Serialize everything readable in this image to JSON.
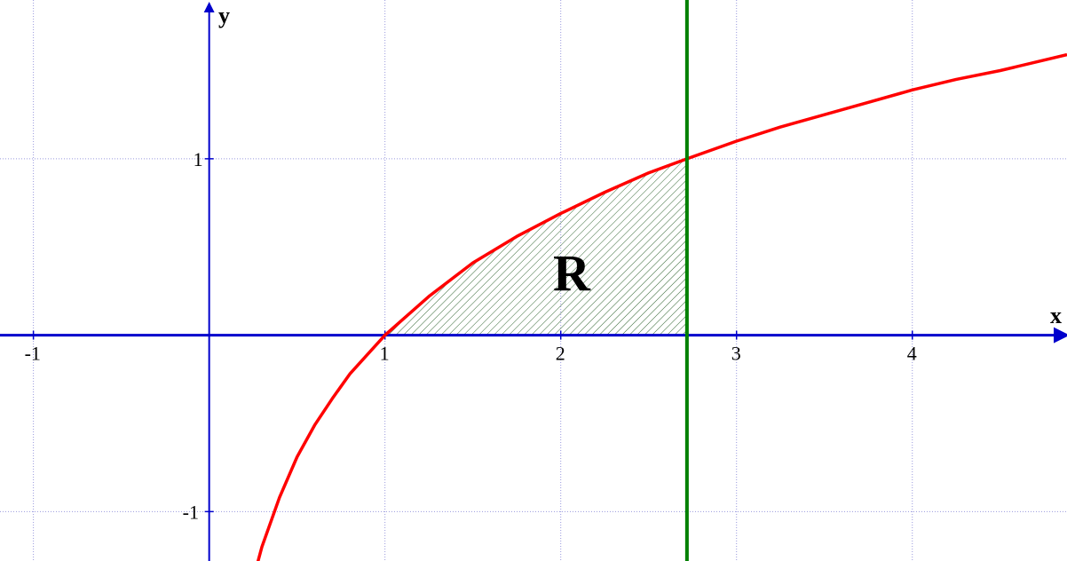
{
  "chart_data": {
    "type": "line",
    "xlabel": "x",
    "ylabel": "y",
    "xlim": [
      -1.19,
      4.88
    ],
    "ylim": [
      -1.28,
      1.9
    ],
    "x_ticks": [
      -1,
      1,
      2,
      3,
      4
    ],
    "y_ticks": [
      1,
      -1
    ],
    "grid": true,
    "region_label": "R",
    "series": [
      {
        "kind": "curve",
        "function": "ln(x)",
        "color": "#ff0000",
        "x": [
          0.27,
          0.3,
          0.4,
          0.5,
          0.6,
          0.7,
          0.8,
          0.9,
          1.0,
          1.25,
          1.5,
          1.75,
          2.0,
          2.25,
          2.5,
          2.718,
          3.0,
          3.25,
          3.5,
          3.75,
          4.0,
          4.25,
          4.5,
          4.88
        ],
        "y": [
          -1.31,
          -1.2,
          -0.92,
          -0.69,
          -0.51,
          -0.36,
          -0.22,
          -0.11,
          0.0,
          0.22,
          0.41,
          0.56,
          0.69,
          0.81,
          0.92,
          1.0,
          1.1,
          1.18,
          1.25,
          1.32,
          1.39,
          1.45,
          1.5,
          1.59
        ]
      },
      {
        "kind": "vertical-line",
        "function": "x = e",
        "color": "#008000",
        "x": 2.718
      }
    ],
    "shaded_region": {
      "label": "R",
      "x_from": 1.0,
      "x_to": 2.718,
      "bounded_by": [
        "y = ln(x)",
        "y = 0",
        "x = e"
      ],
      "pattern": "diagonal-hatch"
    },
    "colors": {
      "axis": "#0000cc",
      "grid": "#9999dd",
      "hatch": "#336633"
    }
  }
}
